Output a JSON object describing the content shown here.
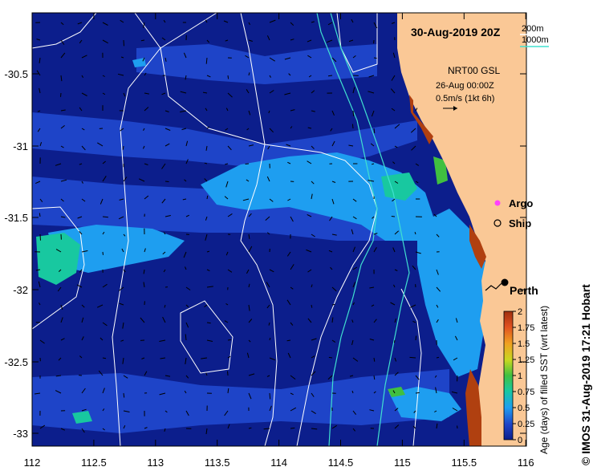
{
  "map": {
    "title": "30-Aug-2019 20Z",
    "isobath_legend": [
      {
        "label": "200m",
        "color": "#ffffff"
      },
      {
        "label": "1000m",
        "color": "#40e0d0"
      }
    ],
    "current_note": {
      "product": "NRT00 GSL",
      "time": "26-Aug 00:00Z",
      "scale": "0.5m/s (1kt 6h)"
    },
    "markers": {
      "argo_label": "Argo",
      "ship_label": "Ship",
      "city_label": "Perth"
    },
    "lon_ticks": [
      "112",
      "112.5",
      "113",
      "113.5",
      "114",
      "114.5",
      "115",
      "115.5",
      "116"
    ],
    "lat_ticks": [
      "-30.5",
      "-31",
      "-31.5",
      "-32",
      "-32.5",
      "-33"
    ],
    "colorbar": {
      "title": "Age (days) of filled SST (wrt latest)",
      "ticks": [
        "0",
        "0.25",
        "0.5",
        "0.75",
        "1",
        "1.25",
        "1.5",
        "1.75",
        "2"
      ]
    },
    "credit": "© IMOS 31-Aug-2019 17:21 Hobart",
    "colors": {
      "ocean_deep": "#0c1e8c",
      "ocean_mid": "#1e44c8",
      "ocean_light": "#1e9ef0",
      "ocean_green": "#18c8a0",
      "land": "#fac896",
      "coastal_brown": "#b04010",
      "isobath_200": "#ffffff",
      "isobath_1000": "#40e0d0"
    }
  }
}
